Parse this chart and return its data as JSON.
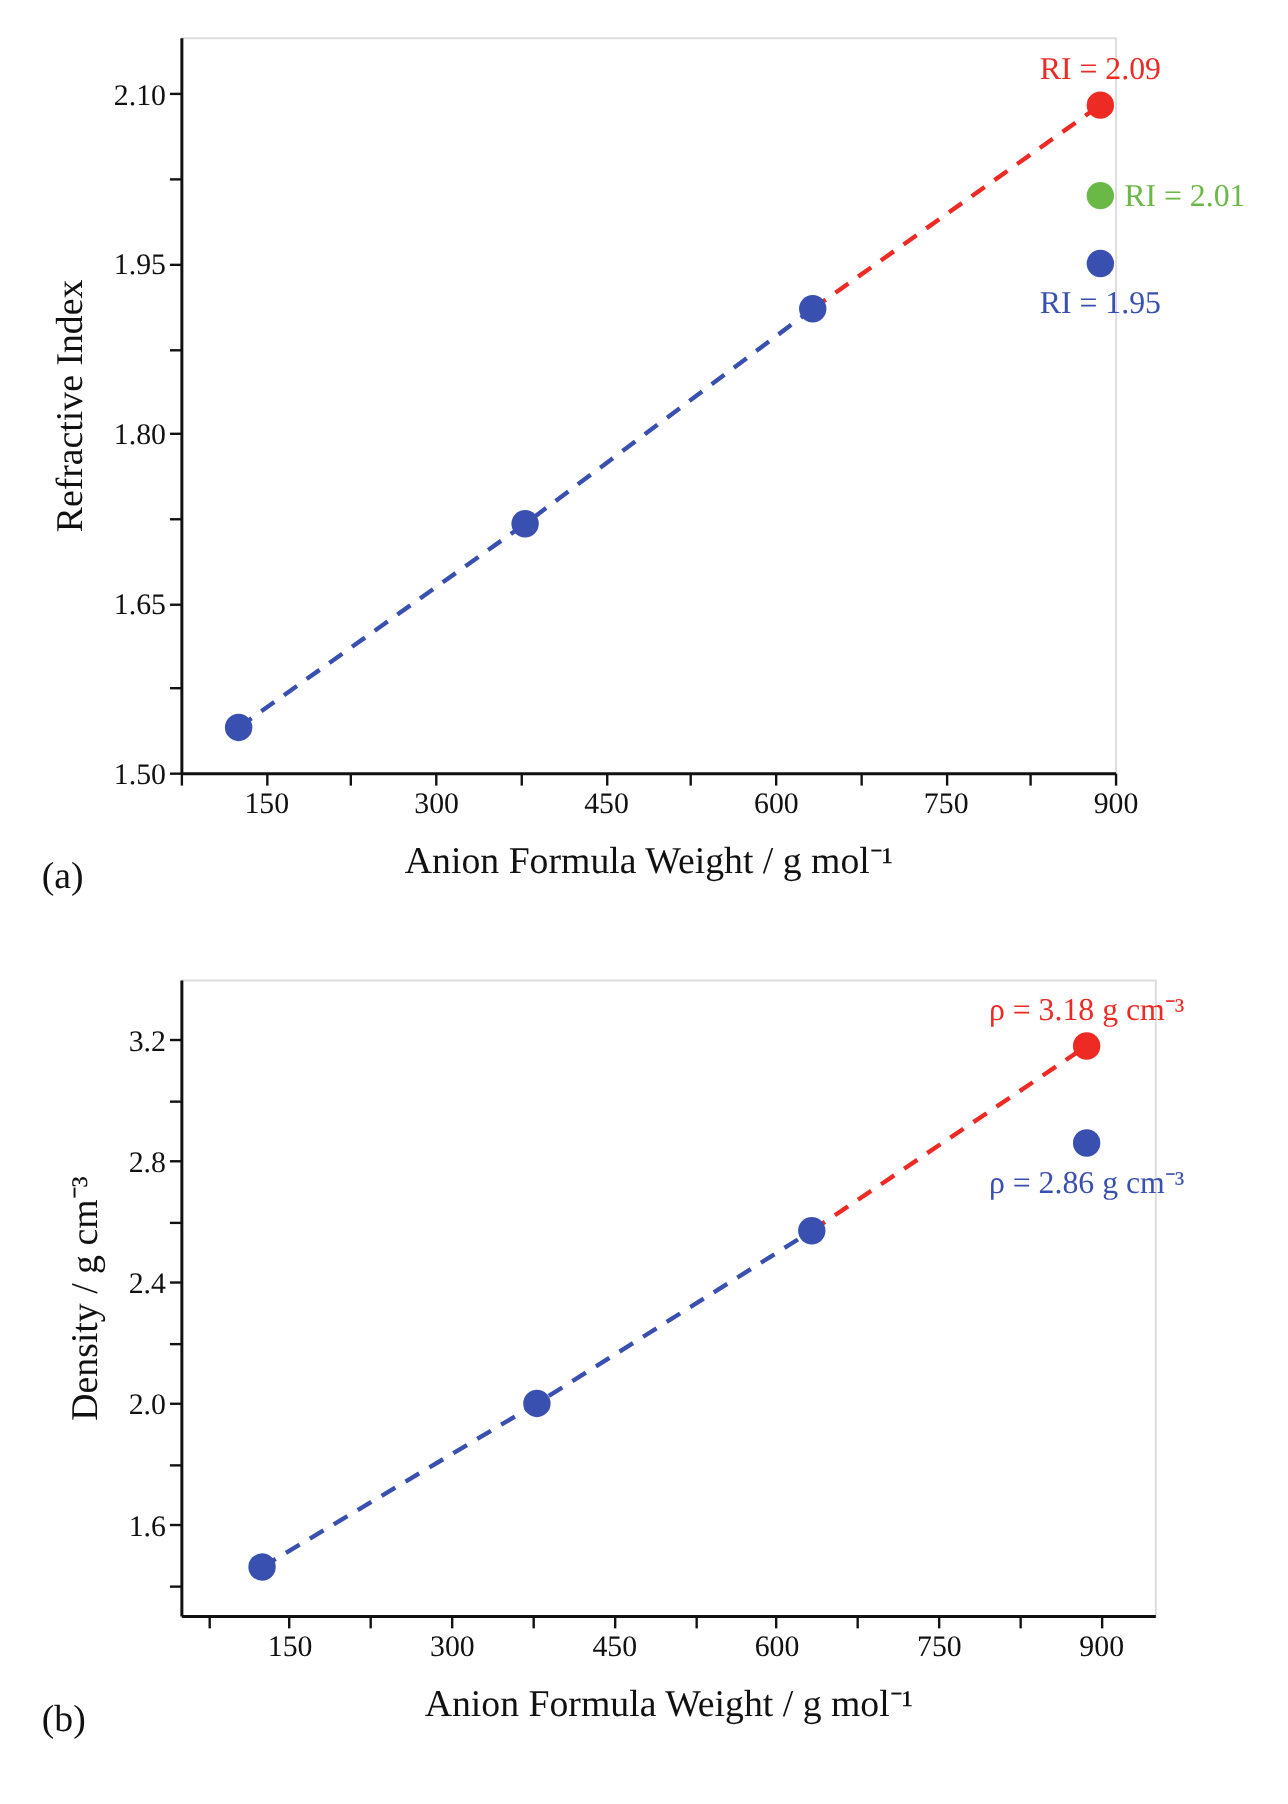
{
  "chart_data": [
    {
      "type": "scatter",
      "xlabel": "Anion Formula Weight / g mol⁻¹",
      "ylabel": "Refractive Index",
      "xlim": [
        75,
        900
      ],
      "ylim": [
        1.5,
        2.15
      ],
      "xticks": [
        {
          "value": 75,
          "label": null
        },
        150,
        {
          "value": 225,
          "label": null
        },
        300,
        {
          "value": 375,
          "label": null
        },
        450,
        {
          "value": 525,
          "label": null
        },
        600,
        {
          "value": 675,
          "label": null
        },
        750,
        {
          "value": 825,
          "label": null
        },
        900
      ],
      "yticks": [
        "1.50",
        {
          "value": 1.575,
          "label": null
        },
        "1.65",
        {
          "value": 1.725,
          "label": null
        },
        "1.80",
        {
          "value": 1.875,
          "label": null
        },
        "1.95",
        {
          "value": 2.025,
          "label": null
        },
        "2.10"
      ],
      "grid": false,
      "annotations": [
        "(a)"
      ],
      "series": [
        {
          "type": "line",
          "color": "#3a50b0",
          "line_style": "dashed",
          "marker": "none",
          "x": [
            126,
            379,
            633
          ],
          "values": [
            1.54,
            1.72,
            1.91
          ]
        },
        {
          "type": "line",
          "color": "#ee2a24",
          "line_style": "dashed",
          "marker": "none",
          "x": [
            633,
            887
          ],
          "values": [
            1.91,
            2.09
          ]
        },
        {
          "color": "#3a50b0",
          "marker": "circle",
          "x": [
            126,
            379,
            633,
            887
          ],
          "values": [
            1.54,
            1.72,
            1.91,
            1.95
          ],
          "value_labels": [
            null,
            null,
            null,
            "RI = 1.95"
          ]
        },
        {
          "color": "#ee2a24",
          "marker": "circle",
          "x": [
            887
          ],
          "values": [
            2.09
          ],
          "value_labels": [
            "RI = 2.09"
          ]
        },
        {
          "color": "#6ab946",
          "marker": "circle",
          "x": [
            887
          ],
          "values": [
            2.01
          ],
          "value_labels": [
            "RI = 2.01"
          ]
        }
      ]
    },
    {
      "type": "scatter",
      "xlabel": "Anion Formula Weight / g mol⁻¹",
      "ylabel": "Density / g cm⁻³",
      "xlim": [
        50,
        950
      ],
      "ylim": [
        1.3,
        3.4
      ],
      "xticks": [
        {
          "value": 75,
          "label": null
        },
        150,
        {
          "value": 225,
          "label": null
        },
        300,
        {
          "value": 375,
          "label": null
        },
        450,
        {
          "value": 525,
          "label": null
        },
        600,
        {
          "value": 675,
          "label": null
        },
        750,
        {
          "value": 825,
          "label": null
        },
        900
      ],
      "yticks": [
        {
          "value": 1.4,
          "label": null
        },
        1.6,
        {
          "value": 1.8,
          "label": null
        },
        "2.0",
        {
          "value": 2.2,
          "label": null
        },
        2.4,
        {
          "value": 2.6,
          "label": null
        },
        2.8,
        {
          "value": 3.0,
          "label": null
        },
        3.2
      ],
      "grid": false,
      "annotations": [
        "(b)"
      ],
      "series": [
        {
          "type": "line",
          "color": "#3a50b0",
          "line_style": "dashed",
          "marker": "none",
          "x": [
            125,
            379,
            633
          ],
          "values": [
            1.46,
            2.0,
            2.57
          ]
        },
        {
          "type": "line",
          "color": "#ee2a24",
          "line_style": "dashed",
          "marker": "none",
          "x": [
            633,
            887
          ],
          "values": [
            2.57,
            3.18
          ]
        },
        {
          "color": "#3a50b0",
          "marker": "circle",
          "x": [
            125,
            379,
            633,
            887
          ],
          "values": [
            1.46,
            2.0,
            2.57,
            2.86
          ],
          "value_labels": [
            null,
            null,
            null,
            "ρ = 2.86 g cm⁻³"
          ]
        },
        {
          "color": "#ee2a24",
          "marker": "circle",
          "x": [
            887
          ],
          "values": [
            3.18
          ],
          "value_labels": [
            "ρ = 3.18 g cm⁻³"
          ]
        }
      ]
    }
  ]
}
